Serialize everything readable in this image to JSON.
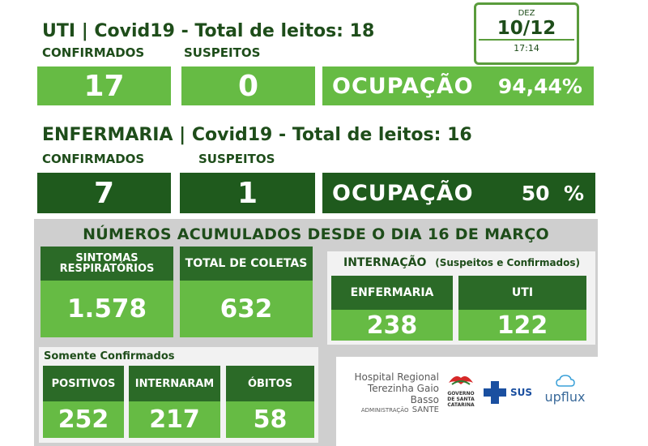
{
  "uti": {
    "title": "UTI | Covid19 - Total de leitos: 18",
    "confirmados_label": "CONFIRMADOS",
    "suspeitos_label": "SUSPEITOS",
    "confirmados_value": "17",
    "suspeitos_value": "0",
    "ocupacao_label": "OCUPAÇÃO",
    "ocupacao_value": "94,44%"
  },
  "date": {
    "month": "DEZ",
    "day": "10/12",
    "time": "17:14"
  },
  "enfermaria": {
    "title": "ENFERMARIA | Covid19 - Total de leitos: 16",
    "confirmados_label": "CONFIRMADOS",
    "suspeitos_label": "SUSPEITOS",
    "confirmados_value": "7",
    "suspeitos_value": "1",
    "ocupacao_label": "OCUPAÇÃO",
    "ocupacao_value": "50  %"
  },
  "acumulados": {
    "title": "NÚMEROS ACUMULADOS DESDE O DIA 16 DE MARÇO",
    "sintomas_label_1": "SINTOMAS",
    "sintomas_label_2": "RESPIRATÓRIOS",
    "sintomas_value": "1.578",
    "coletas_label": "TOTAL DE COLETAS",
    "coletas_value": "632",
    "internacao_label": "INTERNAÇÃO",
    "internacao_sub": "(Suspeitos e Confirmados)",
    "int_enfermaria_label": "ENFERMARIA",
    "int_enfermaria_value": "238",
    "int_uti_label": "UTI",
    "int_uti_value": "122",
    "somente_label": "Somente Confirmados",
    "positivos_label": "POSITIVOS",
    "positivos_value": "252",
    "internaram_label": "INTERNARAM",
    "internaram_value": "217",
    "obitos_label": "ÓBITOS",
    "obitos_value": "58"
  },
  "logos": {
    "hospital_line1": "Hospital Regional",
    "hospital_line2": "Terezinha Gaio Basso",
    "hospital_admin": "ADMINISTRAÇÃO",
    "hospital_admin_brand": "SANTE",
    "gov_line1": "GOVERNO",
    "gov_line2": "DE SANTA",
    "gov_line3": "CATARINA",
    "sus": "SUS",
    "upflux": "upflux"
  },
  "colors": {
    "dark_green": "#1f5a1d",
    "light_green": "#66bb44",
    "text_green": "#1e4d1a"
  }
}
